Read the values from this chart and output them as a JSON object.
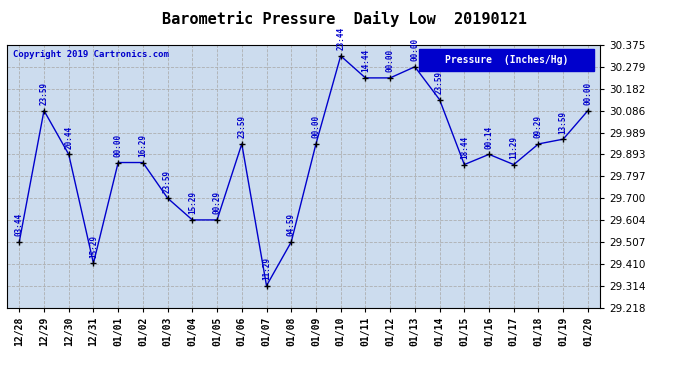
{
  "title": "Barometric Pressure  Daily Low  20190121",
  "copyright": "Copyright 2019 Cartronics.com",
  "legend_label": "Pressure  (Inches/Hg)",
  "ylim": [
    29.218,
    30.375
  ],
  "yticks": [
    29.218,
    29.314,
    29.41,
    29.507,
    29.604,
    29.7,
    29.797,
    29.893,
    29.989,
    30.086,
    30.182,
    30.279,
    30.375
  ],
  "bg_color": "#ffffff",
  "plot_bg_color": "#ccdcee",
  "line_color": "#0000cc",
  "marker_color": "#000000",
  "title_color": "#000000",
  "copyright_color": "#0000cc",
  "legend_bg": "#0000cc",
  "legend_text_color": "#ffffff",
  "dates": [
    "12/28",
    "12/29",
    "12/30",
    "12/31",
    "01/01",
    "01/02",
    "01/03",
    "01/04",
    "01/05",
    "01/06",
    "01/07",
    "01/08",
    "01/09",
    "01/10",
    "01/11",
    "01/12",
    "01/13",
    "01/14",
    "01/15",
    "01/16",
    "01/17",
    "01/18",
    "01/19",
    "01/20"
  ],
  "values": [
    29.507,
    30.086,
    29.893,
    29.413,
    29.857,
    29.857,
    29.7,
    29.604,
    29.604,
    29.939,
    29.314,
    29.507,
    29.939,
    30.327,
    30.23,
    30.23,
    30.279,
    30.134,
    29.848,
    29.893,
    29.848,
    29.939,
    29.96,
    30.086
  ],
  "times": [
    "03:44",
    "23:59",
    "20:44",
    "15:29",
    "00:00",
    "16:29",
    "23:59",
    "15:29",
    "00:29",
    "23:59",
    "11:29",
    "04:59",
    "00:00",
    "23:44",
    "14:44",
    "00:00",
    "00:00",
    "23:59",
    "18:44",
    "00:14",
    "11:29",
    "09:29",
    "13:59",
    "00:00"
  ],
  "figwidth": 6.9,
  "figheight": 3.75,
  "dpi": 100
}
